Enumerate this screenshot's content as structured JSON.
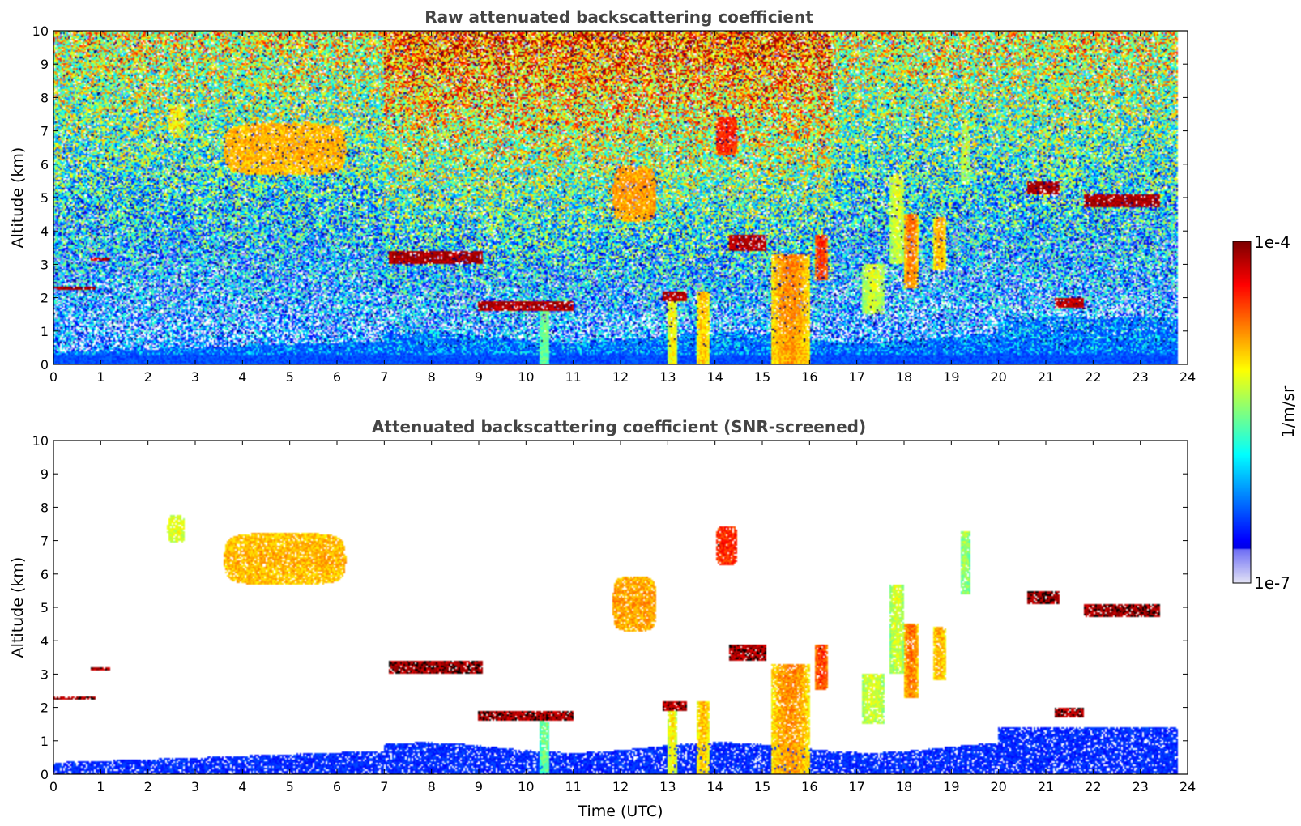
{
  "chart_data": [
    {
      "type": "heatmap",
      "title": "Raw attenuated backscattering coefficient",
      "xlabel": "",
      "ylabel": "Altitude (km)",
      "xlim": [
        0,
        24
      ],
      "ylim": [
        0,
        10
      ],
      "xticks": [
        "0",
        "1",
        "2",
        "3",
        "4",
        "5",
        "6",
        "7",
        "8",
        "9",
        "10",
        "11",
        "12",
        "13",
        "14",
        "15",
        "16",
        "17",
        "18",
        "19",
        "20",
        "21",
        "22",
        "23",
        "24"
      ],
      "yticks": [
        "0",
        "1",
        "2",
        "3",
        "4",
        "5",
        "6",
        "7",
        "8",
        "9",
        "10"
      ],
      "data_end_time": 23.8,
      "features": [
        {
          "kind": "cloud_layer",
          "t0": 0.0,
          "t1": 0.9,
          "z0": 2.22,
          "z1": 2.34,
          "intensity": 0.95
        },
        {
          "kind": "cloud_layer",
          "t0": 0.8,
          "t1": 1.2,
          "z0": 3.1,
          "z1": 3.2,
          "intensity": 0.9
        },
        {
          "kind": "cloud_layer",
          "t0": 7.1,
          "t1": 9.1,
          "z0": 3.0,
          "z1": 3.4,
          "intensity": 0.95
        },
        {
          "kind": "cloud_layer",
          "t0": 9.0,
          "t1": 11.0,
          "z0": 1.6,
          "z1": 1.9,
          "intensity": 0.92
        },
        {
          "kind": "cloud_layer",
          "t0": 12.9,
          "t1": 13.4,
          "z0": 1.9,
          "z1": 2.2,
          "intensity": 0.9
        },
        {
          "kind": "cloud_layer",
          "t0": 14.3,
          "t1": 15.1,
          "z0": 3.4,
          "z1": 3.9,
          "intensity": 0.9
        },
        {
          "kind": "cloud_layer",
          "t0": 20.6,
          "t1": 21.3,
          "z0": 5.1,
          "z1": 5.5,
          "intensity": 0.95
        },
        {
          "kind": "cloud_layer",
          "t0": 21.8,
          "t1": 23.4,
          "z0": 4.7,
          "z1": 5.1,
          "intensity": 0.95
        },
        {
          "kind": "cloud_layer",
          "t0": 21.2,
          "t1": 21.8,
          "z0": 1.7,
          "z1": 2.0,
          "intensity": 0.88
        },
        {
          "kind": "cirrus",
          "t0": 3.5,
          "t1": 6.3,
          "z0": 5.6,
          "z1": 7.3,
          "intensity": 0.7
        },
        {
          "kind": "cirrus",
          "t0": 2.4,
          "t1": 2.8,
          "z0": 6.9,
          "z1": 7.8,
          "intensity": 0.6
        },
        {
          "kind": "cirrus",
          "t0": 11.8,
          "t1": 12.8,
          "z0": 4.2,
          "z1": 6.0,
          "intensity": 0.72
        },
        {
          "kind": "cirrus",
          "t0": 14.0,
          "t1": 14.5,
          "z0": 6.2,
          "z1": 7.5,
          "intensity": 0.85
        },
        {
          "kind": "precip_shaft",
          "t0": 10.3,
          "t1": 10.5,
          "z0": 0.0,
          "z1": 1.6,
          "intensity": 0.5
        },
        {
          "kind": "precip_shaft",
          "t0": 13.0,
          "t1": 13.2,
          "z0": 0.0,
          "z1": 2.0,
          "intensity": 0.65
        },
        {
          "kind": "precip_shaft",
          "t0": 13.6,
          "t1": 13.9,
          "z0": 0.0,
          "z1": 2.2,
          "intensity": 0.7
        },
        {
          "kind": "precip_shaft",
          "t0": 15.2,
          "t1": 16.0,
          "z0": 0.0,
          "z1": 3.3,
          "intensity": 0.75
        },
        {
          "kind": "precip_shaft",
          "t0": 16.1,
          "t1": 16.4,
          "z0": 2.5,
          "z1": 3.9,
          "intensity": 0.85
        },
        {
          "kind": "precip_shaft",
          "t0": 17.1,
          "t1": 17.6,
          "z0": 1.5,
          "z1": 3.0,
          "intensity": 0.6
        },
        {
          "kind": "precip_shaft",
          "t0": 17.7,
          "t1": 18.0,
          "z0": 3.0,
          "z1": 5.7,
          "intensity": 0.6
        },
        {
          "kind": "precip_shaft",
          "t0": 18.0,
          "t1": 18.3,
          "z0": 2.3,
          "z1": 4.5,
          "intensity": 0.78
        },
        {
          "kind": "precip_shaft",
          "t0": 18.6,
          "t1": 18.9,
          "z0": 2.8,
          "z1": 4.4,
          "intensity": 0.72
        },
        {
          "kind": "precip_shaft",
          "t0": 19.2,
          "t1": 19.4,
          "z0": 5.4,
          "z1": 7.3,
          "intensity": 0.55
        }
      ]
    },
    {
      "type": "heatmap",
      "title": "Attenuated backscattering coefficient (SNR-screened)",
      "xlabel": "Time (UTC)",
      "ylabel": "Altitude (km)",
      "xlim": [
        0,
        24
      ],
      "ylim": [
        0,
        10
      ],
      "xticks": [
        "0",
        "1",
        "2",
        "3",
        "4",
        "5",
        "6",
        "7",
        "8",
        "9",
        "10",
        "11",
        "12",
        "13",
        "14",
        "15",
        "16",
        "17",
        "18",
        "19",
        "20",
        "21",
        "22",
        "23",
        "24"
      ],
      "yticks": [
        "0",
        "1",
        "2",
        "3",
        "4",
        "5",
        "6",
        "7",
        "8",
        "9",
        "10"
      ],
      "screened": true
    }
  ],
  "colorbar": {
    "label": "1/m/sr",
    "max_label": "1e-4",
    "min_label": "1e-7",
    "colormap": "jet",
    "scale": "log",
    "range": [
      1e-07,
      0.0001
    ]
  }
}
